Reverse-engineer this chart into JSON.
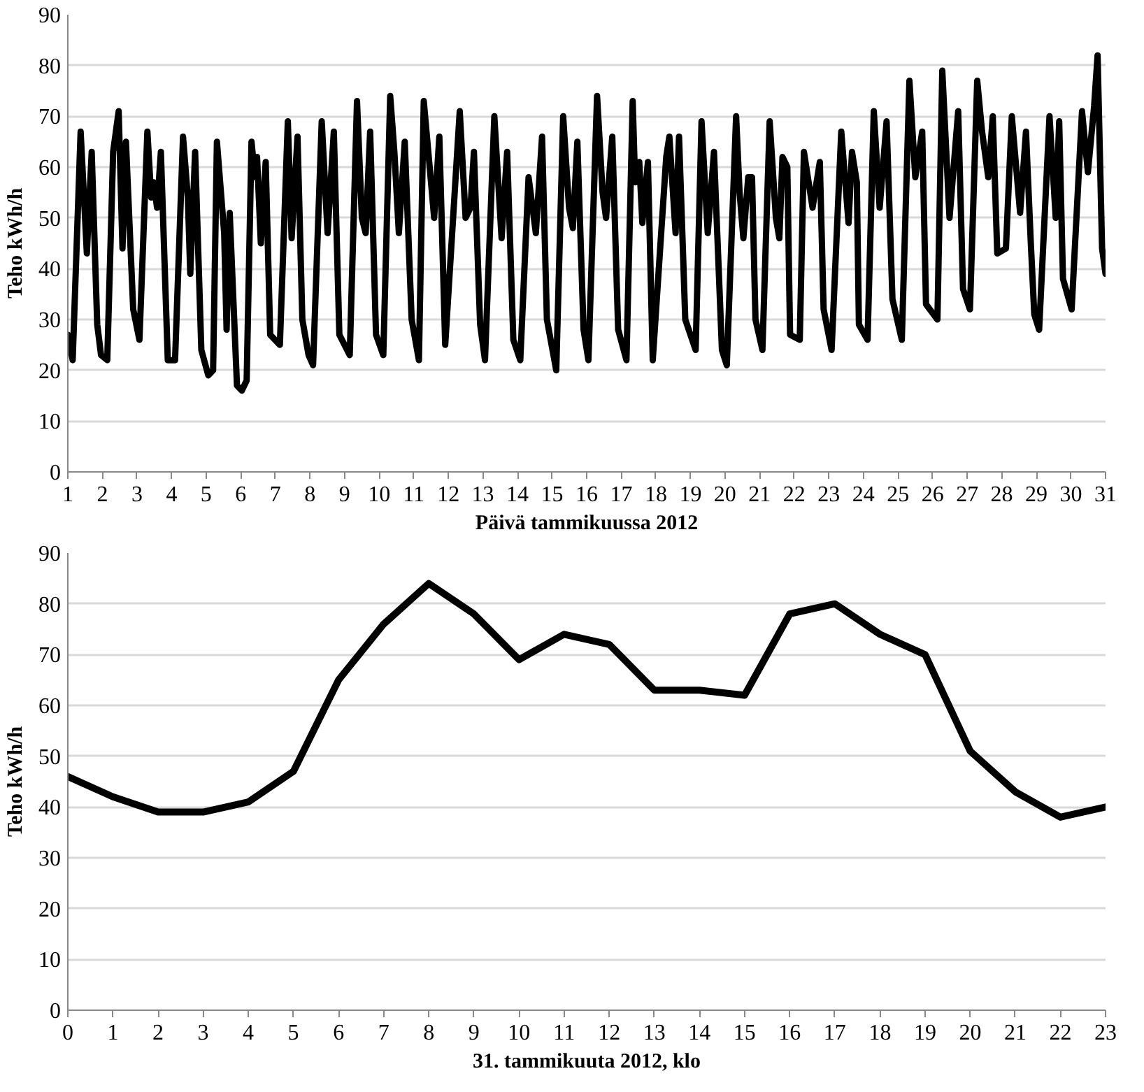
{
  "chart_data": [
    {
      "type": "line",
      "xlabel": "Päivä tammikuussa 2012",
      "ylabel": "Teho kWh/h",
      "xlim": [
        1,
        31
      ],
      "xticks": [
        1,
        2,
        3,
        4,
        5,
        6,
        7,
        8,
        9,
        10,
        11,
        12,
        13,
        14,
        15,
        16,
        17,
        18,
        19,
        20,
        21,
        22,
        23,
        24,
        25,
        26,
        27,
        28,
        29,
        30,
        31
      ],
      "ylim": [
        0,
        90
      ],
      "yticks": [
        0,
        10,
        20,
        30,
        40,
        50,
        60,
        70,
        80,
        90
      ],
      "grid": "y",
      "marker": "none",
      "line_style": "solid",
      "series": [
        {
          "color": "#000000",
          "x": [
            1.0,
            1.14,
            1.37,
            1.55,
            1.69,
            1.85,
            1.96,
            2.14,
            2.31,
            2.47,
            2.58,
            2.68,
            2.89,
            3.07,
            3.3,
            3.41,
            3.48,
            3.58,
            3.69,
            3.89,
            4.1,
            4.33,
            4.47,
            4.54,
            4.68,
            4.86,
            5.06,
            5.2,
            5.31,
            5.52,
            5.59,
            5.68,
            5.89,
            6.03,
            6.17,
            6.31,
            6.41,
            6.47,
            6.58,
            6.72,
            6.85,
            7.13,
            7.36,
            7.47,
            7.64,
            7.78,
            7.96,
            8.09,
            8.34,
            8.51,
            8.69,
            8.85,
            9.15,
            9.36,
            9.5,
            9.61,
            9.74,
            9.91,
            10.12,
            10.32,
            10.44,
            10.57,
            10.74,
            10.94,
            11.15,
            11.29,
            11.5,
            11.59,
            11.74,
            11.91,
            12.33,
            12.5,
            12.64,
            12.74,
            12.92,
            13.06,
            13.33,
            13.54,
            13.7,
            13.88,
            14.08,
            14.32,
            14.53,
            14.71,
            14.85,
            15.12,
            15.32,
            15.49,
            15.6,
            15.73,
            15.91,
            16.05,
            16.3,
            16.46,
            16.56,
            16.74,
            16.91,
            17.15,
            17.33,
            17.4,
            17.52,
            17.61,
            17.77,
            17.91,
            18.3,
            18.39,
            18.57,
            18.67,
            18.85,
            19.15,
            19.32,
            19.5,
            19.68,
            19.91,
            20.05,
            20.32,
            20.42,
            20.53,
            20.67,
            20.78,
            20.88,
            21.08,
            21.29,
            21.47,
            21.57,
            21.66,
            21.8,
            21.88,
            22.16,
            22.28,
            22.53,
            22.74,
            22.85,
            23.08,
            23.36,
            23.57,
            23.67,
            23.81,
            23.87,
            24.12,
            24.3,
            24.47,
            24.67,
            24.84,
            25.11,
            25.33,
            25.5,
            25.7,
            25.81,
            26.14,
            26.28,
            26.49,
            26.74,
            26.88,
            27.08,
            27.29,
            27.43,
            27.61,
            27.74,
            27.87,
            28.12,
            28.29,
            28.53,
            28.7,
            28.84,
            28.94,
            29.08,
            29.38,
            29.56,
            29.66,
            29.77,
            30.02,
            30.32,
            30.49,
            30.67,
            30.77,
            30.9,
            31.0
          ],
          "values": [
            27,
            22,
            67,
            43,
            63,
            29,
            23,
            22,
            63,
            71,
            44,
            65,
            32,
            26,
            67,
            54,
            57,
            52,
            63,
            22,
            22,
            66,
            54,
            39,
            63,
            24,
            19,
            20,
            65,
            47,
            28,
            51,
            17,
            16,
            18,
            65,
            58,
            62,
            45,
            61,
            27,
            25,
            69,
            46,
            66,
            30,
            23,
            21,
            69,
            47,
            67,
            27,
            23,
            73,
            50,
            47,
            67,
            27,
            23,
            74,
            63,
            47,
            65,
            30,
            22,
            73,
            57,
            50,
            66,
            25,
            71,
            50,
            52,
            63,
            29,
            22,
            70,
            46,
            63,
            26,
            22,
            58,
            47,
            66,
            30,
            20,
            70,
            52,
            48,
            65,
            28,
            22,
            74,
            55,
            50,
            66,
            28,
            22,
            73,
            57,
            61,
            49,
            61,
            22,
            62,
            66,
            47,
            66,
            30,
            24,
            69,
            47,
            63,
            24,
            21,
            70,
            55,
            46,
            58,
            58,
            30,
            24,
            69,
            50,
            46,
            62,
            60,
            27,
            26,
            63,
            52,
            61,
            32,
            24,
            67,
            49,
            63,
            57,
            29,
            26,
            71,
            52,
            69,
            34,
            26,
            77,
            58,
            67,
            33,
            30,
            79,
            50,
            71,
            36,
            32,
            77,
            67,
            58,
            70,
            43,
            44,
            70,
            51,
            67,
            45,
            31,
            28,
            70,
            50,
            69,
            38,
            32,
            71,
            59,
            72,
            82,
            44,
            39
          ]
        }
      ]
    },
    {
      "type": "line",
      "xlabel": "31. tammikuuta 2012, klo",
      "ylabel": "Teho kWh/h",
      "xlim": [
        0,
        23
      ],
      "xticks": [
        0,
        1,
        2,
        3,
        4,
        5,
        6,
        7,
        8,
        9,
        10,
        11,
        12,
        13,
        14,
        15,
        16,
        17,
        18,
        19,
        20,
        21,
        22,
        23
      ],
      "ylim": [
        0,
        90
      ],
      "yticks": [
        0,
        10,
        20,
        30,
        40,
        50,
        60,
        70,
        80,
        90
      ],
      "grid": "y",
      "marker": "none",
      "line_style": "solid",
      "series": [
        {
          "color": "#000000",
          "x": [
            0,
            1,
            2,
            3,
            4,
            5,
            6,
            7,
            8,
            9,
            10,
            11,
            12,
            13,
            14,
            15,
            16,
            17,
            18,
            19,
            20,
            21,
            22,
            23
          ],
          "values": [
            46,
            42,
            39,
            39,
            41,
            47,
            65,
            76,
            84,
            78,
            69,
            74,
            72,
            63,
            63,
            62,
            78,
            80,
            74,
            70,
            51,
            43,
            38,
            40
          ]
        }
      ]
    }
  ]
}
